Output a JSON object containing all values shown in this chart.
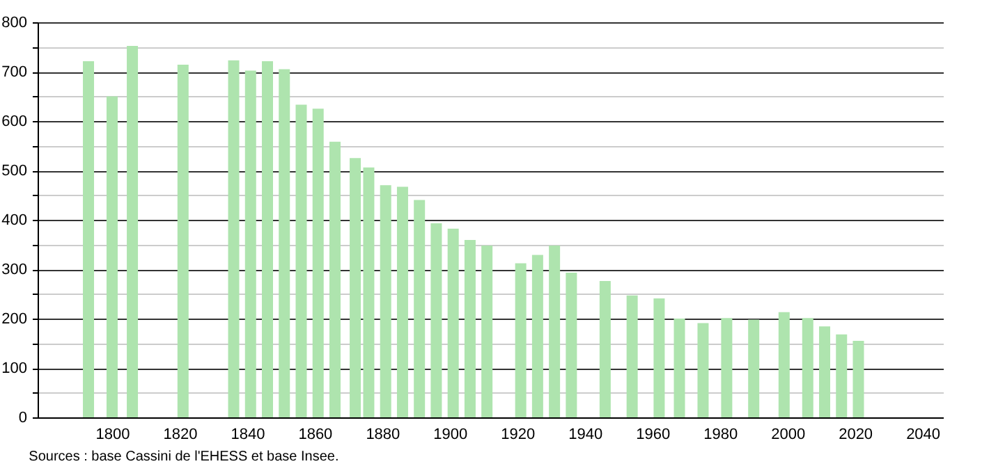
{
  "chart_data": {
    "type": "bar",
    "x": [
      1793,
      1800,
      1806,
      1821,
      1836,
      1841,
      1846,
      1851,
      1856,
      1861,
      1866,
      1872,
      1876,
      1881,
      1886,
      1891,
      1896,
      1901,
      1906,
      1911,
      1921,
      1926,
      1931,
      1936,
      1946,
      1954,
      1962,
      1968,
      1975,
      1982,
      1990,
      1999,
      2006,
      2011,
      2016,
      2021
    ],
    "values": [
      721,
      650,
      752,
      714,
      723,
      702,
      721,
      705,
      633,
      625,
      558,
      525,
      506,
      470,
      467,
      440,
      393,
      382,
      359,
      348,
      312,
      329,
      348,
      293,
      276,
      247,
      241,
      200,
      191,
      201,
      198,
      213,
      201,
      184,
      168,
      155
    ],
    "color": "#aee4ae",
    "xlim": [
      1780,
      2044
    ],
    "xticks": [
      1800,
      1820,
      1840,
      1860,
      1880,
      1900,
      1920,
      1940,
      1960,
      1980,
      2000,
      2020,
      2040
    ],
    "ylim": [
      0,
      800
    ],
    "yticks": [
      0,
      {
        "value": 50,
        "label": null
      },
      100,
      {
        "value": 150,
        "label": null
      },
      200,
      {
        "value": 250,
        "label": null
      },
      300,
      {
        "value": 350,
        "label": null
      },
      400,
      {
        "value": 450,
        "label": null
      },
      500,
      {
        "value": 550,
        "label": null
      },
      600,
      {
        "value": 650,
        "label": null
      },
      700,
      {
        "value": 750,
        "label": null
      },
      800
    ],
    "grid": "y",
    "annotations": [
      "Sources : base Cassini de l'EHESS et base Insee."
    ]
  }
}
